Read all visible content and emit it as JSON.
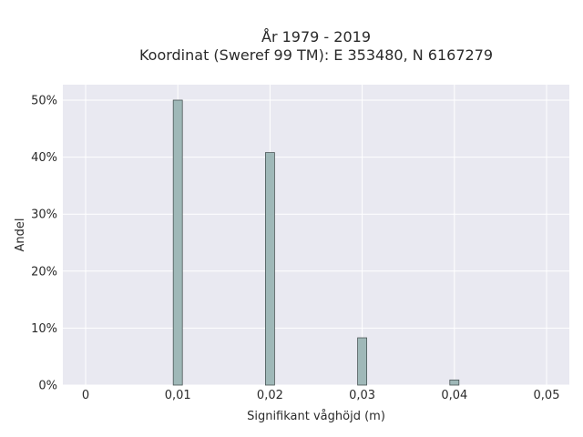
{
  "chart_data": {
    "type": "bar",
    "title": "År 1979 - 2019",
    "subtitle": "Koordinat (Sweref 99 TM): E 353480, N 6167279",
    "xlabel": "Signifikant våghöjd (m)",
    "ylabel": "Andel",
    "x": [
      0.01,
      0.02,
      0.03,
      0.04
    ],
    "values": [
      50.0,
      40.8,
      8.3,
      0.9
    ],
    "xlim": [
      0,
      0.05
    ],
    "ylim": [
      0,
      50
    ],
    "x_ticks": [
      0,
      0.01,
      0.02,
      0.03,
      0.04,
      0.05
    ],
    "x_tick_labels": [
      "0",
      "0,01",
      "0,02",
      "0,03",
      "0,04",
      "0,05"
    ],
    "y_ticks": [
      0,
      10,
      20,
      30,
      40,
      50
    ],
    "y_tick_labels": [
      "0%",
      "10%",
      "20%",
      "30%",
      "40%",
      "50%"
    ],
    "grid": true,
    "colors": {
      "bar_fill": "#9fb8b8",
      "bar_stroke": "#4a5656",
      "plot_background": "#e9e9f1",
      "grid": "#ffffff"
    }
  }
}
